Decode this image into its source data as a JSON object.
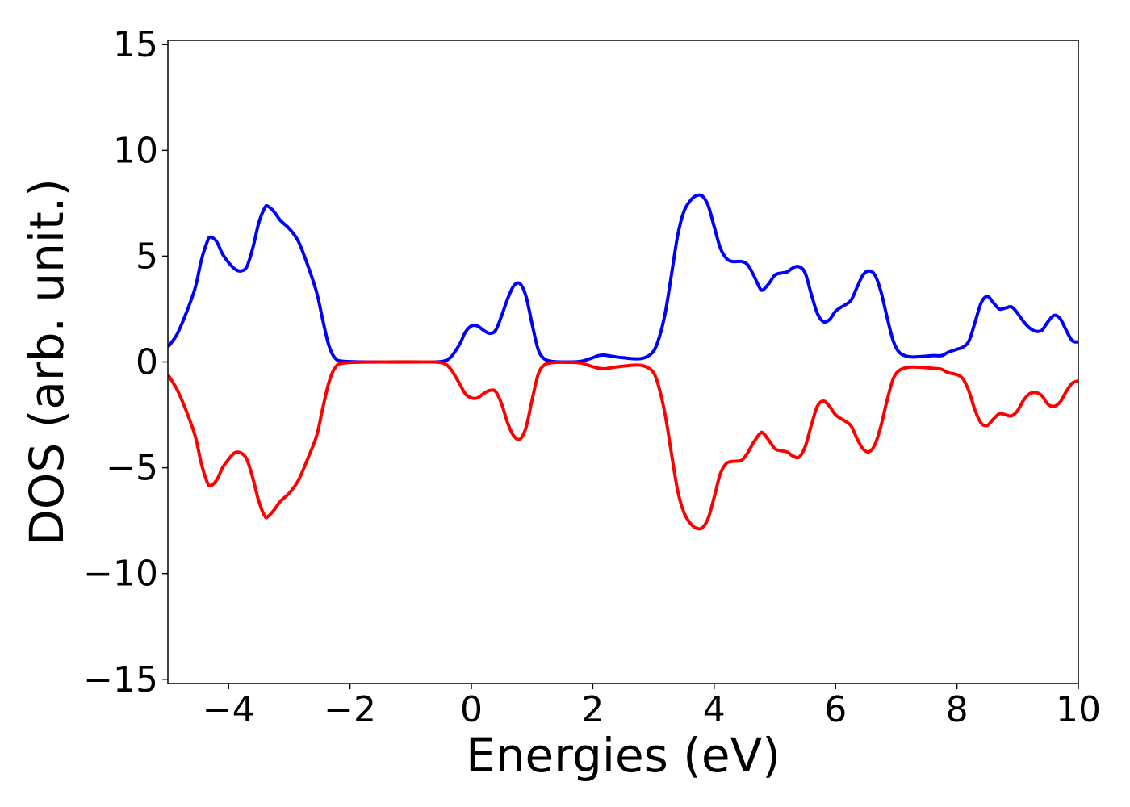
{
  "chart_data": {
    "type": "line",
    "title": "",
    "xlabel": "Energies (eV)",
    "ylabel": "DOS (arb. unit.)",
    "xlim": [
      -5,
      10
    ],
    "ylim": [
      -15.2,
      15.2
    ],
    "xticks": [
      -4,
      -2,
      0,
      2,
      4,
      6,
      8,
      10
    ],
    "xtick_labels": [
      "−4",
      "−2",
      "0",
      "2",
      "4",
      "6",
      "8",
      "10"
    ],
    "yticks": [
      15,
      10,
      5,
      0,
      -5,
      -10,
      -15
    ],
    "ytick_labels": [
      "15",
      "10",
      "5",
      "0",
      "−5",
      "−10",
      "−15"
    ],
    "grid": false,
    "legend": "none",
    "series": [
      {
        "color": "#0000ff",
        "points": [
          [
            -5.0,
            0.7
          ],
          [
            -4.85,
            1.3
          ],
          [
            -4.7,
            2.3
          ],
          [
            -4.55,
            3.5
          ],
          [
            -4.45,
            4.8
          ],
          [
            -4.35,
            5.7
          ],
          [
            -4.3,
            5.9
          ],
          [
            -4.2,
            5.7
          ],
          [
            -4.1,
            5.1
          ],
          [
            -4.0,
            4.7
          ],
          [
            -3.9,
            4.4
          ],
          [
            -3.8,
            4.3
          ],
          [
            -3.7,
            4.5
          ],
          [
            -3.6,
            5.4
          ],
          [
            -3.5,
            6.6
          ],
          [
            -3.4,
            7.3
          ],
          [
            -3.35,
            7.35
          ],
          [
            -3.25,
            7.1
          ],
          [
            -3.15,
            6.7
          ],
          [
            -3.0,
            6.3
          ],
          [
            -2.85,
            5.7
          ],
          [
            -2.7,
            4.6
          ],
          [
            -2.55,
            3.3
          ],
          [
            -2.45,
            2.0
          ],
          [
            -2.35,
            0.8
          ],
          [
            -2.25,
            0.2
          ],
          [
            -2.1,
            0.03
          ],
          [
            -1.5,
            0.0
          ],
          [
            -0.8,
            0.0
          ],
          [
            -0.5,
            0.02
          ],
          [
            -0.35,
            0.2
          ],
          [
            -0.2,
            0.8
          ],
          [
            -0.1,
            1.4
          ],
          [
            0.0,
            1.7
          ],
          [
            0.1,
            1.7
          ],
          [
            0.2,
            1.5
          ],
          [
            0.3,
            1.35
          ],
          [
            0.4,
            1.5
          ],
          [
            0.5,
            2.2
          ],
          [
            0.6,
            3.0
          ],
          [
            0.7,
            3.6
          ],
          [
            0.8,
            3.7
          ],
          [
            0.9,
            3.1
          ],
          [
            1.0,
            1.8
          ],
          [
            1.1,
            0.6
          ],
          [
            1.2,
            0.15
          ],
          [
            1.35,
            0.02
          ],
          [
            1.6,
            0.0
          ],
          [
            1.8,
            0.03
          ],
          [
            1.95,
            0.15
          ],
          [
            2.1,
            0.3
          ],
          [
            2.2,
            0.32
          ],
          [
            2.35,
            0.25
          ],
          [
            2.5,
            0.2
          ],
          [
            2.7,
            0.15
          ],
          [
            2.85,
            0.2
          ],
          [
            3.0,
            0.5
          ],
          [
            3.1,
            1.2
          ],
          [
            3.2,
            2.4
          ],
          [
            3.3,
            4.2
          ],
          [
            3.4,
            6.0
          ],
          [
            3.5,
            7.1
          ],
          [
            3.6,
            7.6
          ],
          [
            3.7,
            7.85
          ],
          [
            3.8,
            7.85
          ],
          [
            3.9,
            7.4
          ],
          [
            4.0,
            6.4
          ],
          [
            4.1,
            5.4
          ],
          [
            4.2,
            4.9
          ],
          [
            4.3,
            4.75
          ],
          [
            4.45,
            4.75
          ],
          [
            4.55,
            4.6
          ],
          [
            4.65,
            4.1
          ],
          [
            4.75,
            3.5
          ],
          [
            4.8,
            3.4
          ],
          [
            4.9,
            3.7
          ],
          [
            5.0,
            4.1
          ],
          [
            5.1,
            4.2
          ],
          [
            5.2,
            4.25
          ],
          [
            5.3,
            4.45
          ],
          [
            5.4,
            4.5
          ],
          [
            5.5,
            4.2
          ],
          [
            5.6,
            3.2
          ],
          [
            5.7,
            2.3
          ],
          [
            5.8,
            1.9
          ],
          [
            5.9,
            2.0
          ],
          [
            6.0,
            2.4
          ],
          [
            6.1,
            2.6
          ],
          [
            6.25,
            2.9
          ],
          [
            6.35,
            3.5
          ],
          [
            6.45,
            4.1
          ],
          [
            6.55,
            4.3
          ],
          [
            6.65,
            4.1
          ],
          [
            6.75,
            3.3
          ],
          [
            6.85,
            2.1
          ],
          [
            6.95,
            1.0
          ],
          [
            7.05,
            0.45
          ],
          [
            7.2,
            0.25
          ],
          [
            7.4,
            0.25
          ],
          [
            7.6,
            0.3
          ],
          [
            7.75,
            0.3
          ],
          [
            7.85,
            0.45
          ],
          [
            8.0,
            0.6
          ],
          [
            8.1,
            0.7
          ],
          [
            8.2,
            1.0
          ],
          [
            8.3,
            1.9
          ],
          [
            8.4,
            2.8
          ],
          [
            8.5,
            3.1
          ],
          [
            8.6,
            2.8
          ],
          [
            8.7,
            2.5
          ],
          [
            8.8,
            2.55
          ],
          [
            8.9,
            2.6
          ],
          [
            9.0,
            2.3
          ],
          [
            9.1,
            1.9
          ],
          [
            9.2,
            1.6
          ],
          [
            9.3,
            1.45
          ],
          [
            9.4,
            1.5
          ],
          [
            9.5,
            1.9
          ],
          [
            9.6,
            2.2
          ],
          [
            9.7,
            2.05
          ],
          [
            9.8,
            1.5
          ],
          [
            9.9,
            1.0
          ],
          [
            10.0,
            0.95
          ]
        ]
      },
      {
        "color": "#ff0000",
        "points": [
          [
            -5.0,
            -0.6
          ],
          [
            -4.85,
            -1.3
          ],
          [
            -4.7,
            -2.3
          ],
          [
            -4.55,
            -3.5
          ],
          [
            -4.45,
            -4.8
          ],
          [
            -4.35,
            -5.7
          ],
          [
            -4.3,
            -5.85
          ],
          [
            -4.2,
            -5.6
          ],
          [
            -4.1,
            -5.0
          ],
          [
            -4.0,
            -4.6
          ],
          [
            -3.9,
            -4.3
          ],
          [
            -3.8,
            -4.3
          ],
          [
            -3.7,
            -4.6
          ],
          [
            -3.6,
            -5.5
          ],
          [
            -3.5,
            -6.6
          ],
          [
            -3.4,
            -7.3
          ],
          [
            -3.35,
            -7.3
          ],
          [
            -3.25,
            -7.0
          ],
          [
            -3.15,
            -6.6
          ],
          [
            -3.0,
            -6.2
          ],
          [
            -2.85,
            -5.6
          ],
          [
            -2.7,
            -4.6
          ],
          [
            -2.55,
            -3.5
          ],
          [
            -2.45,
            -2.2
          ],
          [
            -2.35,
            -1.0
          ],
          [
            -2.25,
            -0.3
          ],
          [
            -2.1,
            -0.05
          ],
          [
            -1.5,
            0.0
          ],
          [
            -0.8,
            0.0
          ],
          [
            -0.5,
            -0.03
          ],
          [
            -0.35,
            -0.3
          ],
          [
            -0.2,
            -1.0
          ],
          [
            -0.1,
            -1.5
          ],
          [
            0.0,
            -1.7
          ],
          [
            0.1,
            -1.7
          ],
          [
            0.2,
            -1.5
          ],
          [
            0.3,
            -1.35
          ],
          [
            0.4,
            -1.4
          ],
          [
            0.5,
            -2.0
          ],
          [
            0.6,
            -2.9
          ],
          [
            0.7,
            -3.5
          ],
          [
            0.8,
            -3.65
          ],
          [
            0.9,
            -3.1
          ],
          [
            1.0,
            -1.8
          ],
          [
            1.1,
            -0.6
          ],
          [
            1.2,
            -0.15
          ],
          [
            1.35,
            -0.03
          ],
          [
            1.6,
            -0.02
          ],
          [
            1.8,
            -0.05
          ],
          [
            1.95,
            -0.18
          ],
          [
            2.1,
            -0.3
          ],
          [
            2.2,
            -0.32
          ],
          [
            2.35,
            -0.25
          ],
          [
            2.5,
            -0.2
          ],
          [
            2.7,
            -0.15
          ],
          [
            2.85,
            -0.2
          ],
          [
            3.0,
            -0.5
          ],
          [
            3.1,
            -1.3
          ],
          [
            3.2,
            -2.6
          ],
          [
            3.3,
            -4.4
          ],
          [
            3.4,
            -6.1
          ],
          [
            3.5,
            -7.1
          ],
          [
            3.6,
            -7.6
          ],
          [
            3.7,
            -7.85
          ],
          [
            3.8,
            -7.85
          ],
          [
            3.9,
            -7.4
          ],
          [
            4.0,
            -6.4
          ],
          [
            4.1,
            -5.3
          ],
          [
            4.2,
            -4.8
          ],
          [
            4.3,
            -4.7
          ],
          [
            4.45,
            -4.65
          ],
          [
            4.55,
            -4.3
          ],
          [
            4.65,
            -3.8
          ],
          [
            4.75,
            -3.4
          ],
          [
            4.8,
            -3.35
          ],
          [
            4.9,
            -3.7
          ],
          [
            5.0,
            -4.1
          ],
          [
            5.1,
            -4.2
          ],
          [
            5.2,
            -4.25
          ],
          [
            5.3,
            -4.45
          ],
          [
            5.4,
            -4.5
          ],
          [
            5.5,
            -4.0
          ],
          [
            5.6,
            -3.0
          ],
          [
            5.7,
            -2.1
          ],
          [
            5.8,
            -1.85
          ],
          [
            5.9,
            -2.1
          ],
          [
            6.0,
            -2.5
          ],
          [
            6.1,
            -2.7
          ],
          [
            6.25,
            -3.0
          ],
          [
            6.35,
            -3.6
          ],
          [
            6.45,
            -4.1
          ],
          [
            6.55,
            -4.25
          ],
          [
            6.65,
            -3.9
          ],
          [
            6.75,
            -3.0
          ],
          [
            6.85,
            -1.8
          ],
          [
            6.95,
            -0.8
          ],
          [
            7.05,
            -0.4
          ],
          [
            7.2,
            -0.25
          ],
          [
            7.4,
            -0.25
          ],
          [
            7.6,
            -0.3
          ],
          [
            7.75,
            -0.35
          ],
          [
            7.85,
            -0.5
          ],
          [
            8.0,
            -0.6
          ],
          [
            8.1,
            -0.8
          ],
          [
            8.2,
            -1.4
          ],
          [
            8.3,
            -2.3
          ],
          [
            8.4,
            -2.9
          ],
          [
            8.5,
            -3.0
          ],
          [
            8.6,
            -2.7
          ],
          [
            8.7,
            -2.45
          ],
          [
            8.8,
            -2.5
          ],
          [
            8.9,
            -2.55
          ],
          [
            9.0,
            -2.3
          ],
          [
            9.1,
            -1.8
          ],
          [
            9.2,
            -1.5
          ],
          [
            9.3,
            -1.45
          ],
          [
            9.4,
            -1.6
          ],
          [
            9.5,
            -2.0
          ],
          [
            9.6,
            -2.1
          ],
          [
            9.7,
            -1.9
          ],
          [
            9.8,
            -1.4
          ],
          [
            9.9,
            -1.0
          ],
          [
            10.0,
            -0.9
          ]
        ]
      }
    ]
  }
}
